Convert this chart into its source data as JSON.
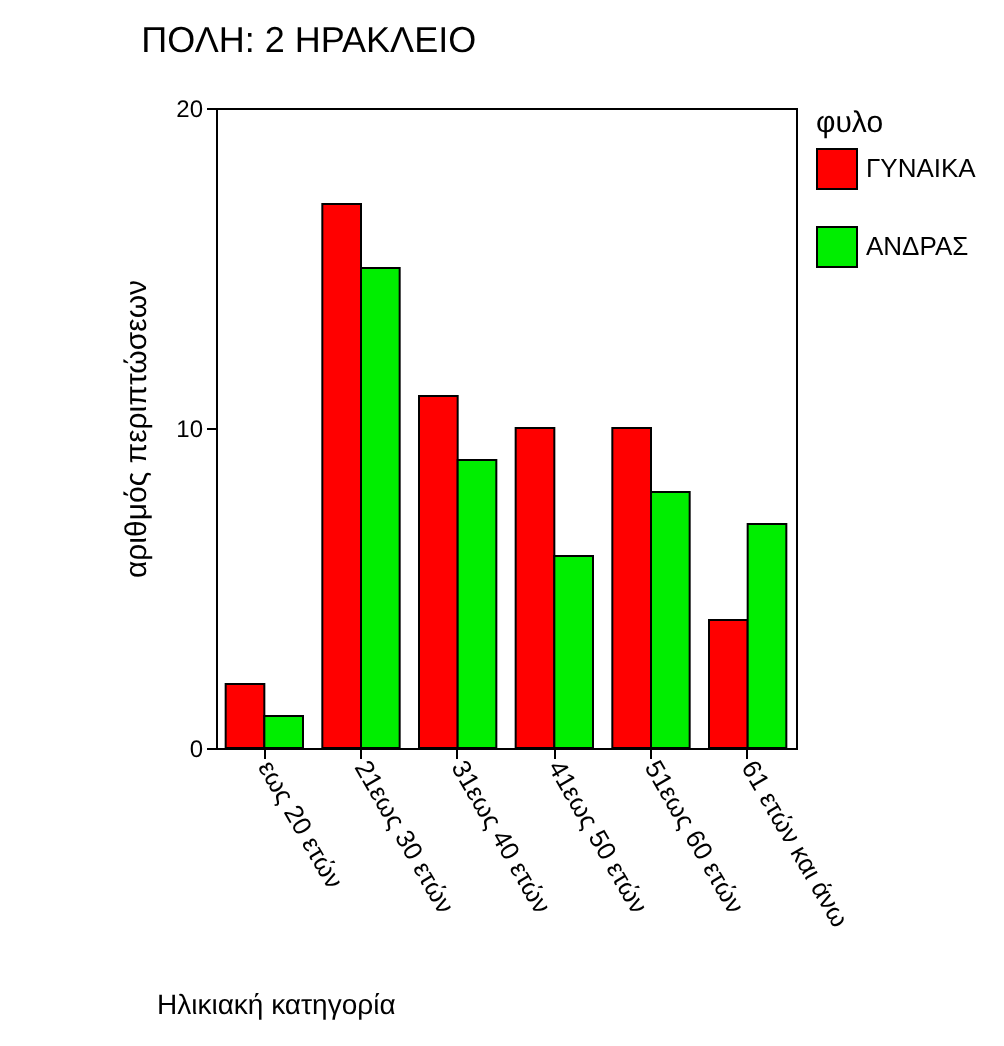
{
  "chart_data": {
    "type": "bar",
    "title": "ΠΟΛΗ:        2   ΗΡΑΚΛΕΙΟ",
    "xlabel": "Ηλικιακή κατηγορία",
    "ylabel": "αριθμός περιπτώσεων",
    "legend_title": "φυλο",
    "categories": [
      "εως 20 ετών",
      "21εως 30 ετών",
      "31εως 40 ετών",
      "41εως 50 ετών",
      "51εως 60 ετών",
      "61 ετών και άνω"
    ],
    "series": [
      {
        "name": "ΓΥΝΑΙΚΑ",
        "color": "#ff0000",
        "values": [
          2,
          17,
          11,
          10,
          10,
          4
        ]
      },
      {
        "name": "ΑΝΔΡΑΣ",
        "color": "#00ee00",
        "values": [
          1,
          15,
          9,
          6,
          8,
          7
        ]
      }
    ],
    "ylim": [
      0,
      20
    ],
    "yticks": [
      0,
      10,
      20
    ],
    "grid": false,
    "legend": "right"
  }
}
